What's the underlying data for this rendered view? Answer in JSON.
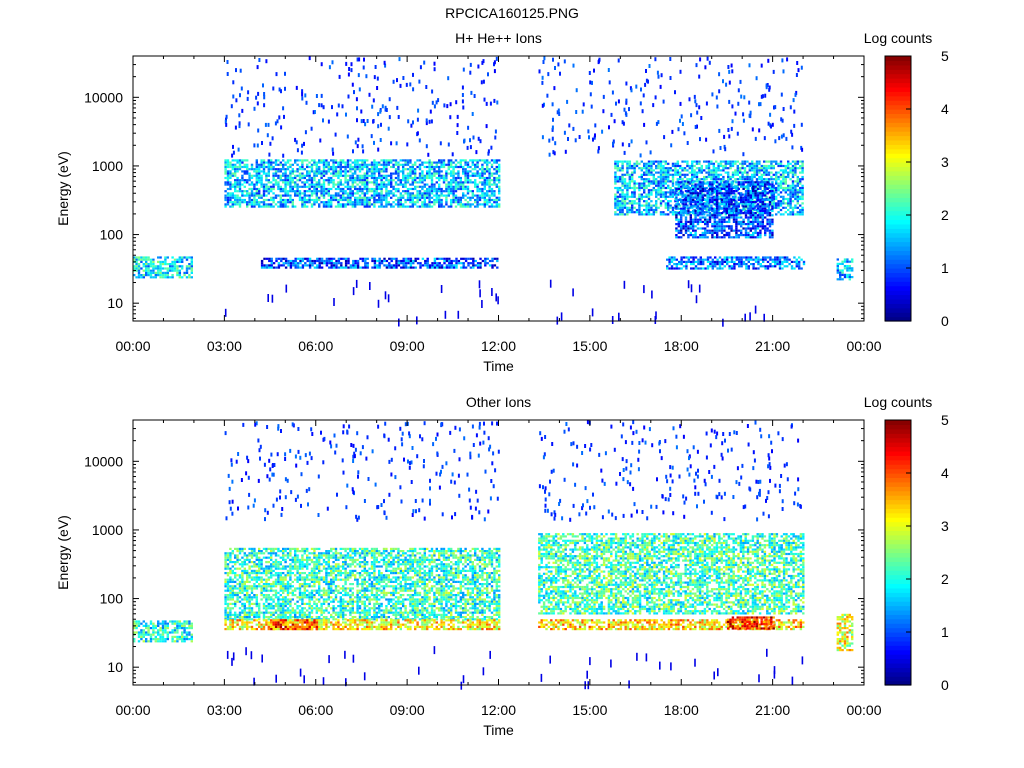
{
  "figure": {
    "title": "RPCICA160125.PNG"
  },
  "chart_data": [
    {
      "type": "heatmap",
      "title": "H+ He++ Ions",
      "xlabel": "Time",
      "ylabel": "Energy (eV)",
      "x_ticks": [
        "00:00",
        "03:00",
        "06:00",
        "09:00",
        "12:00",
        "15:00",
        "18:00",
        "21:00",
        "00:00"
      ],
      "xlim_hours": [
        0,
        24
      ],
      "y_scale": "log",
      "y_ticks": [
        "10",
        "100",
        "1000",
        "10000"
      ],
      "ylim": [
        5.5,
        40000
      ],
      "colorbar": {
        "label": "Log counts",
        "range": [
          0,
          5
        ],
        "ticks": [
          "0",
          "1",
          "2",
          "3",
          "4",
          "5"
        ],
        "colormap": "jet"
      },
      "data_intervals_hours": [
        [
          0,
          1.95
        ],
        [
          3.0,
          12.0
        ],
        [
          13.3,
          22.0
        ],
        [
          23.1,
          23.65
        ]
      ],
      "bands": [
        {
          "t_start": 0.0,
          "t_end": 1.95,
          "e_low": 24,
          "e_high": 48,
          "log_counts": 1.8
        },
        {
          "t_start": 3.0,
          "t_end": 12.0,
          "e_low": 250,
          "e_high": 1250,
          "log_counts": 1.6
        },
        {
          "t_start": 4.2,
          "t_end": 12.0,
          "e_low": 33,
          "e_high": 46,
          "log_counts": 1.0
        },
        {
          "t_start": 15.8,
          "t_end": 22.0,
          "e_low": 200,
          "e_high": 1200,
          "log_counts": 1.6
        },
        {
          "t_start": 17.8,
          "t_end": 21.0,
          "e_low": 90,
          "e_high": 600,
          "log_counts": 1.0
        },
        {
          "t_start": 17.5,
          "t_end": 22.0,
          "e_low": 33,
          "e_high": 48,
          "log_counts": 1.2
        },
        {
          "t_start": 23.1,
          "t_end": 23.65,
          "e_low": 22,
          "e_high": 45,
          "log_counts": 1.6
        }
      ]
    },
    {
      "type": "heatmap",
      "title": "Other Ions",
      "xlabel": "Time",
      "ylabel": "Energy (eV)",
      "x_ticks": [
        "00:00",
        "03:00",
        "06:00",
        "09:00",
        "12:00",
        "15:00",
        "18:00",
        "21:00",
        "00:00"
      ],
      "xlim_hours": [
        0,
        24
      ],
      "y_scale": "log",
      "y_ticks": [
        "10",
        "100",
        "1000",
        "10000"
      ],
      "ylim": [
        5.5,
        40000
      ],
      "colorbar": {
        "label": "Log counts",
        "range": [
          0,
          5
        ],
        "ticks": [
          "0",
          "1",
          "2",
          "3",
          "4",
          "5"
        ],
        "colormap": "jet"
      },
      "data_intervals_hours": [
        [
          0,
          1.95
        ],
        [
          3.0,
          12.0
        ],
        [
          13.3,
          22.0
        ],
        [
          23.1,
          23.65
        ]
      ],
      "bands": [
        {
          "t_start": 0.0,
          "t_end": 1.95,
          "e_low": 24,
          "e_high": 48,
          "log_counts": 2.0
        },
        {
          "t_start": 3.0,
          "t_end": 12.0,
          "e_low": 50,
          "e_high": 550,
          "log_counts": 2.1
        },
        {
          "t_start": 3.0,
          "t_end": 12.0,
          "e_low": 36,
          "e_high": 50,
          "log_counts": 3.2
        },
        {
          "t_start": 4.5,
          "t_end": 6.0,
          "e_low": 36,
          "e_high": 50,
          "log_counts": 4.0
        },
        {
          "t_start": 13.3,
          "t_end": 22.0,
          "e_low": 60,
          "e_high": 900,
          "log_counts": 2.2
        },
        {
          "t_start": 13.3,
          "t_end": 22.0,
          "e_low": 36,
          "e_high": 50,
          "log_counts": 3.3
        },
        {
          "t_start": 19.5,
          "t_end": 21.0,
          "e_low": 38,
          "e_high": 55,
          "log_counts": 4.2
        },
        {
          "t_start": 23.1,
          "t_end": 23.65,
          "e_low": 18,
          "e_high": 60,
          "log_counts": 3.0
        }
      ]
    }
  ]
}
